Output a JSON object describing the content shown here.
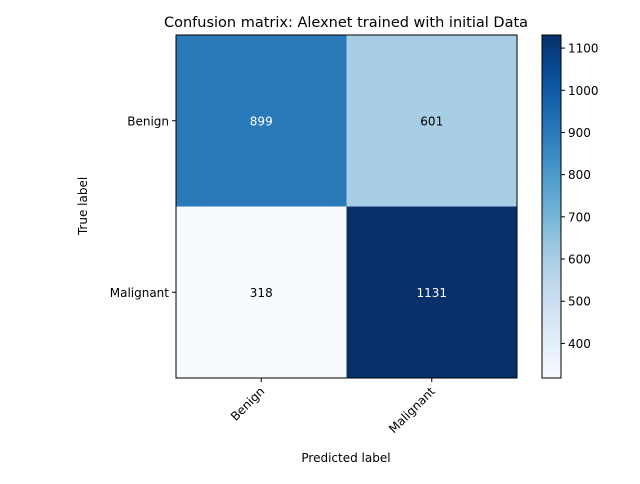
{
  "chart_data": {
    "type": "heatmap",
    "title": "Confusion matrix: Alexnet trained with initial Data",
    "xlabel": "Predicted label",
    "ylabel": "True label",
    "x_categories": [
      "Benign",
      "Malignant"
    ],
    "y_categories": [
      "Benign",
      "Malignant"
    ],
    "values": [
      [
        899,
        601
      ],
      [
        318,
        1131
      ]
    ],
    "colormap": "Blues",
    "colorbar": {
      "ticks": [
        400,
        500,
        600,
        700,
        800,
        900,
        1000,
        1100
      ],
      "range": [
        318,
        1131
      ]
    },
    "cell_text_colors": {
      "on_dark": "#ffffff",
      "on_light": "#000000"
    }
  }
}
